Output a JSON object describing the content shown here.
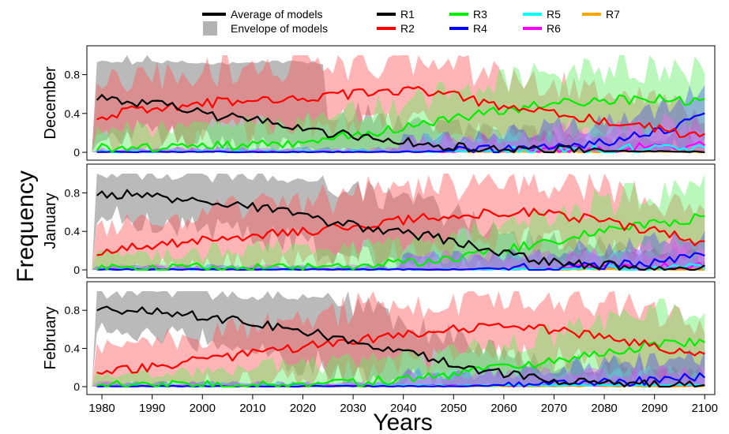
{
  "chart_data": {
    "type": "line",
    "ylabel": "Frequency",
    "xlabel": "Years",
    "xlim": [
      1977,
      2102
    ],
    "x_ticks": [
      1980,
      1990,
      2000,
      2010,
      2020,
      2030,
      2040,
      2050,
      2060,
      2070,
      2080,
      2090,
      2100
    ],
    "y_ticks": [
      0,
      0.4,
      0.8
    ],
    "ylim": [
      0,
      1
    ],
    "legend": {
      "average_label": "Average of models",
      "envelope_label": "Envelope of models"
    },
    "regimes": [
      {
        "name": "R1",
        "color": "#000000"
      },
      {
        "name": "R2",
        "color": "#ff0000"
      },
      {
        "name": "R3",
        "color": "#00ee00"
      },
      {
        "name": "R4",
        "color": "#0000ff"
      },
      {
        "name": "R5",
        "color": "#00ffff"
      },
      {
        "name": "R6",
        "color": "#ff00ff"
      },
      {
        "name": "R7",
        "color": "#ffa500"
      }
    ],
    "panels": [
      {
        "month": "December",
        "series": [
          {
            "name": "R1",
            "knots": [
              [
                1979,
                0.57
              ],
              [
                1985,
                0.52
              ],
              [
                1990,
                0.5
              ],
              [
                1995,
                0.45
              ],
              [
                2000,
                0.4
              ],
              [
                2005,
                0.36
              ],
              [
                2010,
                0.33
              ],
              [
                2015,
                0.3
              ],
              [
                2020,
                0.25
              ],
              [
                2025,
                0.2
              ],
              [
                2030,
                0.17
              ],
              [
                2035,
                0.15
              ],
              [
                2040,
                0.11
              ],
              [
                2045,
                0.07
              ],
              [
                2050,
                0.05
              ],
              [
                2060,
                0.03
              ],
              [
                2070,
                0.02
              ],
              [
                2080,
                0.01
              ],
              [
                2100,
                0.0
              ]
            ]
          },
          {
            "name": "R2",
            "knots": [
              [
                1979,
                0.37
              ],
              [
                1985,
                0.42
              ],
              [
                1990,
                0.45
              ],
              [
                2000,
                0.5
              ],
              [
                2010,
                0.55
              ],
              [
                2020,
                0.57
              ],
              [
                2030,
                0.6
              ],
              [
                2040,
                0.63
              ],
              [
                2045,
                0.62
              ],
              [
                2050,
                0.58
              ],
              [
                2055,
                0.52
              ],
              [
                2060,
                0.45
              ],
              [
                2070,
                0.4
              ],
              [
                2080,
                0.32
              ],
              [
                2090,
                0.25
              ],
              [
                2100,
                0.15
              ]
            ]
          },
          {
            "name": "R3",
            "knots": [
              [
                1979,
                0.05
              ],
              [
                1990,
                0.05
              ],
              [
                2000,
                0.06
              ],
              [
                2010,
                0.07
              ],
              [
                2020,
                0.1
              ],
              [
                2030,
                0.17
              ],
              [
                2040,
                0.25
              ],
              [
                2050,
                0.34
              ],
              [
                2060,
                0.43
              ],
              [
                2070,
                0.5
              ],
              [
                2080,
                0.53
              ],
              [
                2090,
                0.56
              ],
              [
                2100,
                0.52
              ]
            ]
          },
          {
            "name": "R4",
            "knots": [
              [
                1979,
                0.0
              ],
              [
                2040,
                0.0
              ],
              [
                2050,
                0.01
              ],
              [
                2060,
                0.03
              ],
              [
                2070,
                0.06
              ],
              [
                2080,
                0.1
              ],
              [
                2090,
                0.2
              ],
              [
                2100,
                0.38
              ]
            ]
          },
          {
            "name": "R5",
            "knots": [
              [
                1979,
                0.0
              ],
              [
                2040,
                0.0
              ],
              [
                2060,
                0.01
              ],
              [
                2080,
                0.03
              ],
              [
                2100,
                0.04
              ]
            ]
          },
          {
            "name": "R6",
            "knots": [
              [
                1979,
                0.0
              ],
              [
                2050,
                0.0
              ],
              [
                2070,
                0.02
              ],
              [
                2090,
                0.05
              ],
              [
                2100,
                0.07
              ]
            ]
          },
          {
            "name": "R7",
            "knots": [
              [
                1979,
                0.0
              ],
              [
                2100,
                0.0
              ]
            ]
          }
        ]
      },
      {
        "month": "January",
        "series": [
          {
            "name": "R1",
            "knots": [
              [
                1979,
                0.8
              ],
              [
                1985,
                0.78
              ],
              [
                1990,
                0.76
              ],
              [
                1995,
                0.74
              ],
              [
                2000,
                0.72
              ],
              [
                2005,
                0.69
              ],
              [
                2010,
                0.65
              ],
              [
                2015,
                0.62
              ],
              [
                2020,
                0.56
              ],
              [
                2025,
                0.5
              ],
              [
                2030,
                0.46
              ],
              [
                2035,
                0.42
              ],
              [
                2040,
                0.38
              ],
              [
                2045,
                0.35
              ],
              [
                2050,
                0.3
              ],
              [
                2055,
                0.24
              ],
              [
                2060,
                0.17
              ],
              [
                2065,
                0.11
              ],
              [
                2070,
                0.08
              ],
              [
                2080,
                0.05
              ],
              [
                2090,
                0.02
              ],
              [
                2100,
                0.02
              ]
            ]
          },
          {
            "name": "R2",
            "knots": [
              [
                1979,
                0.18
              ],
              [
                1985,
                0.22
              ],
              [
                1990,
                0.25
              ],
              [
                2000,
                0.3
              ],
              [
                2010,
                0.36
              ],
              [
                2020,
                0.4
              ],
              [
                2030,
                0.45
              ],
              [
                2040,
                0.52
              ],
              [
                2050,
                0.57
              ],
              [
                2060,
                0.6
              ],
              [
                2070,
                0.58
              ],
              [
                2080,
                0.5
              ],
              [
                2090,
                0.4
              ],
              [
                2100,
                0.28
              ]
            ]
          },
          {
            "name": "R3",
            "knots": [
              [
                1979,
                0.02
              ],
              [
                2000,
                0.02
              ],
              [
                2020,
                0.03
              ],
              [
                2030,
                0.04
              ],
              [
                2040,
                0.07
              ],
              [
                2050,
                0.12
              ],
              [
                2060,
                0.2
              ],
              [
                2070,
                0.3
              ],
              [
                2080,
                0.4
              ],
              [
                2090,
                0.48
              ],
              [
                2100,
                0.55
              ]
            ]
          },
          {
            "name": "R4",
            "knots": [
              [
                1979,
                0.0
              ],
              [
                2050,
                0.0
              ],
              [
                2060,
                0.01
              ],
              [
                2070,
                0.02
              ],
              [
                2080,
                0.04
              ],
              [
                2090,
                0.08
              ],
              [
                2100,
                0.15
              ]
            ]
          },
          {
            "name": "R5",
            "knots": [
              [
                1979,
                0.0
              ],
              [
                2060,
                0.0
              ],
              [
                2100,
                0.02
              ]
            ]
          },
          {
            "name": "R6",
            "knots": [
              [
                1979,
                0.0
              ],
              [
                2060,
                0.0
              ],
              [
                2100,
                0.03
              ]
            ]
          },
          {
            "name": "R7",
            "knots": [
              [
                1979,
                0.0
              ],
              [
                2100,
                0.0
              ]
            ]
          }
        ]
      },
      {
        "month": "February",
        "series": [
          {
            "name": "R1",
            "knots": [
              [
                1979,
                0.82
              ],
              [
                1985,
                0.8
              ],
              [
                1990,
                0.79
              ],
              [
                1995,
                0.77
              ],
              [
                2000,
                0.74
              ],
              [
                2005,
                0.7
              ],
              [
                2010,
                0.66
              ],
              [
                2015,
                0.62
              ],
              [
                2020,
                0.58
              ],
              [
                2025,
                0.53
              ],
              [
                2030,
                0.48
              ],
              [
                2035,
                0.43
              ],
              [
                2040,
                0.36
              ],
              [
                2045,
                0.3
              ],
              [
                2050,
                0.24
              ],
              [
                2055,
                0.18
              ],
              [
                2060,
                0.13
              ],
              [
                2065,
                0.09
              ],
              [
                2070,
                0.06
              ],
              [
                2080,
                0.04
              ],
              [
                2090,
                0.02
              ],
              [
                2100,
                0.01
              ]
            ]
          },
          {
            "name": "R2",
            "knots": [
              [
                1979,
                0.17
              ],
              [
                1985,
                0.19
              ],
              [
                1990,
                0.21
              ],
              [
                2000,
                0.28
              ],
              [
                2010,
                0.35
              ],
              [
                2020,
                0.42
              ],
              [
                2030,
                0.48
              ],
              [
                2040,
                0.55
              ],
              [
                2050,
                0.6
              ],
              [
                2060,
                0.62
              ],
              [
                2070,
                0.6
              ],
              [
                2080,
                0.52
              ],
              [
                2090,
                0.42
              ],
              [
                2100,
                0.35
              ]
            ]
          },
          {
            "name": "R3",
            "knots": [
              [
                1979,
                0.01
              ],
              [
                2010,
                0.02
              ],
              [
                2020,
                0.03
              ],
              [
                2030,
                0.05
              ],
              [
                2040,
                0.08
              ],
              [
                2050,
                0.13
              ],
              [
                2060,
                0.2
              ],
              [
                2070,
                0.28
              ],
              [
                2080,
                0.36
              ],
              [
                2090,
                0.44
              ],
              [
                2100,
                0.48
              ]
            ]
          },
          {
            "name": "R4",
            "knots": [
              [
                1979,
                0.0
              ],
              [
                2050,
                0.0
              ],
              [
                2070,
                0.02
              ],
              [
                2085,
                0.05
              ],
              [
                2100,
                0.12
              ]
            ]
          },
          {
            "name": "R5",
            "knots": [
              [
                1979,
                0.0
              ],
              [
                2100,
                0.01
              ]
            ]
          },
          {
            "name": "R6",
            "knots": [
              [
                1979,
                0.0
              ],
              [
                2100,
                0.01
              ]
            ]
          },
          {
            "name": "R7",
            "knots": [
              [
                1979,
                0.0
              ],
              [
                2100,
                0.0
              ]
            ]
          }
        ]
      }
    ]
  }
}
